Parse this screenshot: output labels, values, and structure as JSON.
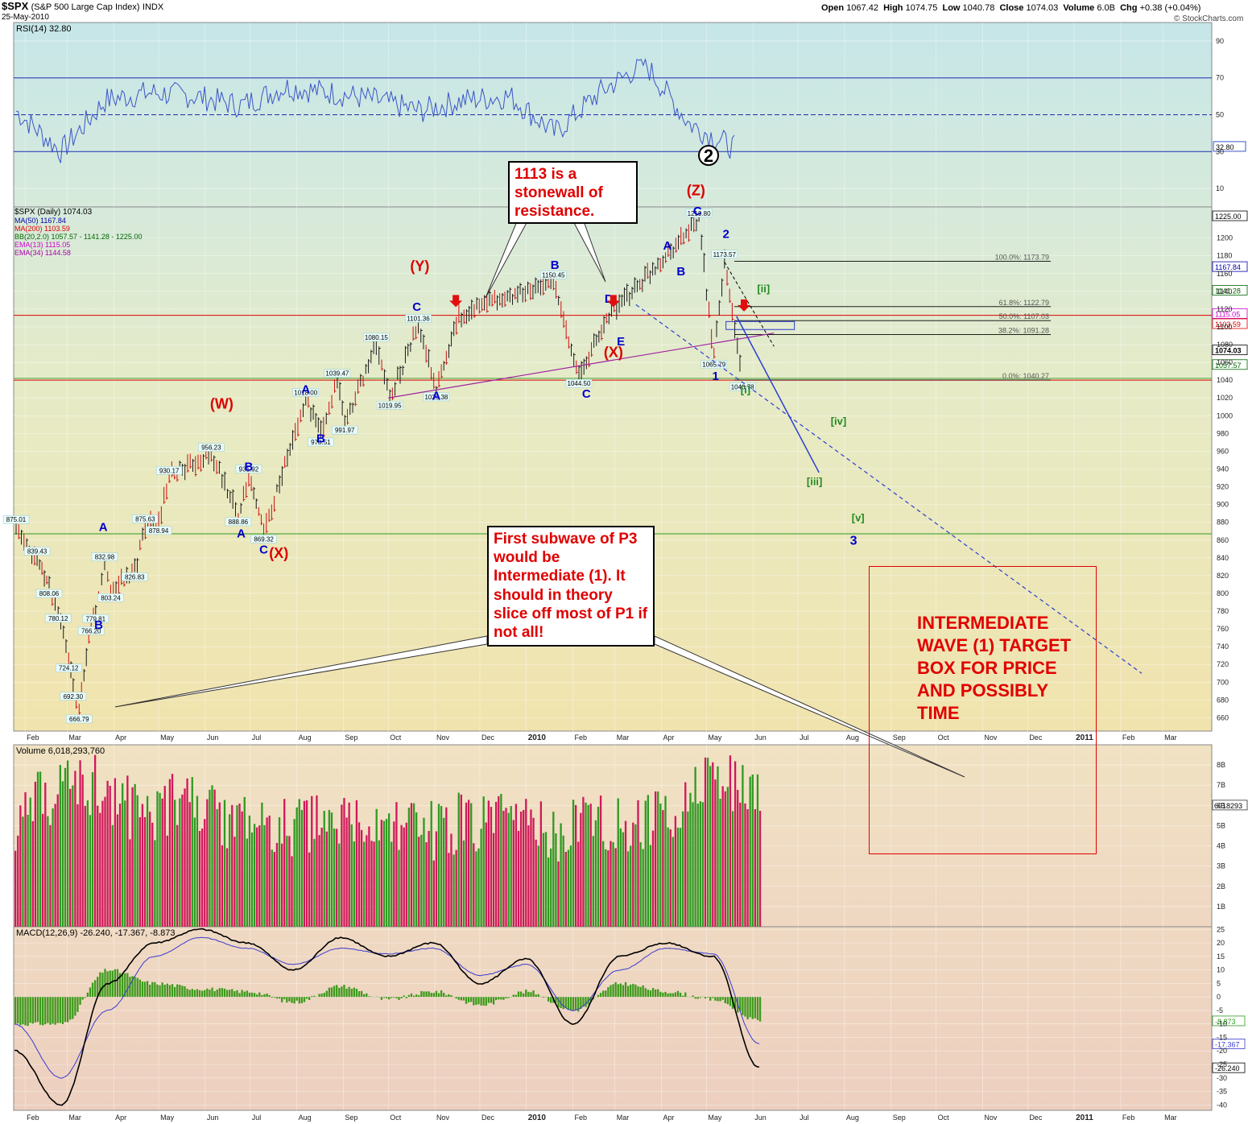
{
  "header": {
    "symbol": "$SPX",
    "name": "(S&P 500 Large Cap Index)",
    "exchange": "INDX",
    "date": "25-May-2010",
    "ohlc": {
      "open_label": "Open",
      "open": "1067.42",
      "high_label": "High",
      "high": "1074.75",
      "low_label": "Low",
      "low": "1040.78",
      "close_label": "Close",
      "close": "1074.03",
      "volume_label": "Volume",
      "volume": "6.0B",
      "chg_label": "Chg",
      "chg": "+0.38 (+0.04%)"
    },
    "watermark": "© StockCharts.com"
  },
  "colors": {
    "rsi_bg": "#cfe8e6",
    "price_bg_top": "#d8e9d8",
    "price_bg_bottom": "#efe2ad",
    "volume_bg": "#f0dcc0",
    "macd_bg": "#eed3c0",
    "up": "#2e9a22",
    "down": "#d0185a",
    "wave_blue": "#0000cc",
    "wave_red": "#dd0000",
    "wave_green": "#228b22"
  },
  "chart_data": [
    {
      "panel": "rsi",
      "type": "line",
      "title": "RSI(14) 32.80",
      "ylim": [
        0,
        100
      ],
      "ticks": [
        "90",
        "70",
        "50",
        "30",
        "10"
      ],
      "levels": [
        70,
        50,
        30
      ],
      "current_value": "32.80",
      "x": [
        "Feb",
        "Mar",
        "Apr",
        "May",
        "Jun",
        "Jul",
        "Aug",
        "Sep",
        "Oct",
        "Nov",
        "Dec",
        "2010",
        "Feb",
        "Mar",
        "Apr",
        "May",
        "Jun"
      ],
      "values": [
        52,
        30,
        58,
        62,
        60,
        55,
        65,
        62,
        58,
        52,
        58,
        60,
        40,
        62,
        78,
        45,
        32
      ]
    },
    {
      "panel": "price",
      "type": "line",
      "title": "$SPX (Daily) 1074.03",
      "ylim": [
        645,
        1235
      ],
      "ticks": [
        "1200",
        "1180",
        "1160",
        "1140",
        "1120",
        "1100",
        "1080",
        "1060",
        "1040",
        "1020",
        "1000",
        "980",
        "960",
        "940",
        "920",
        "900",
        "880",
        "860",
        "840",
        "820",
        "800",
        "780",
        "760",
        "740",
        "720",
        "700",
        "680",
        "660"
      ],
      "x_ticks": [
        "Feb",
        "Mar",
        "Apr",
        "May",
        "Jun",
        "Jul",
        "Aug",
        "Sep",
        "Oct",
        "Nov",
        "Dec",
        "2010",
        "Feb",
        "Mar",
        "Apr",
        "May",
        "Jun",
        "Jul",
        "Aug",
        "Sep",
        "Oct",
        "Nov",
        "Dec",
        "2011",
        "Feb",
        "Mar"
      ],
      "legend": [
        {
          "text": "$SPX (Daily) 1074.03",
          "color": "#000000"
        },
        {
          "text": "MA(50) 1167.84",
          "color": "#0000aa"
        },
        {
          "text": "MA(200) 1103.59",
          "color": "#dd0000"
        },
        {
          "text": "BB(20,2.0) 1057.57 - 1141.28 - 1225.00",
          "color": "#006600"
        },
        {
          "text": "EMA(13) 1115.05",
          "color": "#cc00cc"
        },
        {
          "text": "EMA(34) 1144.58",
          "color": "#aa00aa"
        }
      ],
      "right_values": [
        "1225.00",
        "1167.84",
        "1141.28",
        "1115.05",
        "1103.59",
        "1074.03",
        "1057.57"
      ],
      "series": [
        {
          "name": "$SPX",
          "points": [
            {
              "x": "2009-01-26",
              "y": 875.01
            },
            {
              "x": "2009-02-09",
              "y": 839.43
            },
            {
              "x": "2009-02-17",
              "y": 808.06
            },
            {
              "x": "2009-02-23",
              "y": 780.12
            },
            {
              "x": "2009-03-02",
              "y": 724.12
            },
            {
              "x": "2009-03-05",
              "y": 692.3
            },
            {
              "x": "2009-03-09",
              "y": 666.79
            },
            {
              "x": "2009-03-17",
              "y": 766.2
            },
            {
              "x": "2009-03-20",
              "y": 779.81
            },
            {
              "x": "2009-03-26",
              "y": 832.98
            },
            {
              "x": "2009-03-30",
              "y": 803.24
            },
            {
              "x": "2009-04-15",
              "y": 826.83
            },
            {
              "x": "2009-04-22",
              "y": 875.63
            },
            {
              "x": "2009-05-01",
              "y": 878.94
            },
            {
              "x": "2009-05-08",
              "y": 930.17
            },
            {
              "x": "2009-06-05",
              "y": 956.23
            },
            {
              "x": "2009-06-23",
              "y": 888.86
            },
            {
              "x": "2009-06-30",
              "y": 931.92
            },
            {
              "x": "2009-07-10",
              "y": 869.32
            },
            {
              "x": "2009-08-07",
              "y": 1018.0
            },
            {
              "x": "2009-08-17",
              "y": 978.51
            },
            {
              "x": "2009-08-28",
              "y": 1039.47
            },
            {
              "x": "2009-09-02",
              "y": 991.97
            },
            {
              "x": "2009-09-23",
              "y": 1080.15
            },
            {
              "x": "2009-10-02",
              "y": 1019.95
            },
            {
              "x": "2009-10-21",
              "y": 1101.36
            },
            {
              "x": "2009-11-02",
              "y": 1029.38
            },
            {
              "x": "2009-11-17",
              "y": 1113.0
            },
            {
              "x": "2010-01-19",
              "y": 1150.45
            },
            {
              "x": "2010-02-05",
              "y": 1044.5
            },
            {
              "x": "2010-02-25",
              "y": 1113.0
            },
            {
              "x": "2010-04-26",
              "y": 1219.8
            },
            {
              "x": "2010-05-06",
              "y": 1065.79
            },
            {
              "x": "2010-05-13",
              "y": 1173.57
            },
            {
              "x": "2010-05-25",
              "y": 1040.78
            }
          ]
        }
      ],
      "fib_levels": [
        {
          "label": "100.0%: 1173.79",
          "value": 1173.79
        },
        {
          "label": "61.8%: 1122.79",
          "value": 1122.79
        },
        {
          "label": "50.0%: 1107.03",
          "value": 1107.03
        },
        {
          "label": "38.2%: 1091.28",
          "value": 1091.28
        },
        {
          "label": "0.0%: 1040.27",
          "value": 1040.27
        }
      ],
      "wave_labels": [
        {
          "text": "(W)",
          "color": "red"
        },
        {
          "text": "(X)",
          "color": "red"
        },
        {
          "text": "(Y)",
          "color": "red"
        },
        {
          "text": "(X)",
          "color": "red"
        },
        {
          "text": "(Z)",
          "color": "red"
        },
        {
          "text": "2",
          "color": "black"
        },
        {
          "text": "A"
        },
        {
          "text": "B"
        },
        {
          "text": "C"
        },
        {
          "text": "D"
        },
        {
          "text": "E"
        },
        {
          "text": "1"
        },
        {
          "text": "2"
        },
        {
          "text": "3"
        },
        {
          "text": "[i]",
          "color": "green"
        },
        {
          "text": "[ii]",
          "color": "green"
        },
        {
          "text": "[iii]",
          "color": "green"
        },
        {
          "text": "[iv]",
          "color": "green"
        },
        {
          "text": "[v]",
          "color": "green"
        }
      ]
    },
    {
      "panel": "volume",
      "type": "bar",
      "title": "Volume 6,018,293,760",
      "ylim": [
        0,
        9
      ],
      "ticks": [
        "8B",
        "7B",
        "6B",
        "5B",
        "4B",
        "3B",
        "2B",
        "1B"
      ],
      "current_value": "6018293",
      "values_billion": [
        5.2,
        6.8,
        7.2,
        5.5,
        6.3,
        5.4,
        4.8,
        5.0,
        4.9,
        5.1,
        4.7,
        5.3,
        5.0,
        4.6,
        5.5,
        4.8,
        6.0,
        7.5,
        6.0
      ]
    },
    {
      "panel": "macd",
      "type": "line",
      "title": "MACD(12,26,9) -26.240, -17.367, -8.873",
      "ylim": [
        -42,
        26
      ],
      "ticks": [
        "25",
        "20",
        "15",
        "10",
        "5",
        "0",
        "-5",
        "-10",
        "-15",
        "-20",
        "-25",
        "-30",
        "-35",
        "-40"
      ],
      "right_values": [
        "-8.873",
        "-17.367",
        "-26.240"
      ],
      "series": [
        {
          "name": "MACD(12,26,9)",
          "values": [
            -20,
            -40,
            5,
            20,
            25,
            20,
            10,
            22,
            15,
            20,
            5,
            14,
            -10,
            15,
            20,
            15,
            -26.24
          ]
        },
        {
          "name": "signal",
          "values": [
            -10,
            -30,
            -5,
            15,
            22,
            18,
            12,
            18,
            16,
            18,
            8,
            12,
            -5,
            10,
            18,
            16,
            -17.37
          ]
        }
      ],
      "histogram": [
        -10,
        -10,
        10,
        5,
        3,
        2,
        -2,
        4,
        -1,
        2,
        -3,
        2,
        -5,
        5,
        2,
        -1,
        -8.87
      ]
    }
  ],
  "annotations": {
    "callout_1113": "1113 is a stonewall of resistance.",
    "callout_p3": "First subwave of P3 would be Intermediate (1). It should in theory slice off most of P1 if not all!",
    "target_box": "INTERMEDIATE WAVE (1) TARGET BOX FOR PRICE AND POSSIBLY TIME"
  }
}
